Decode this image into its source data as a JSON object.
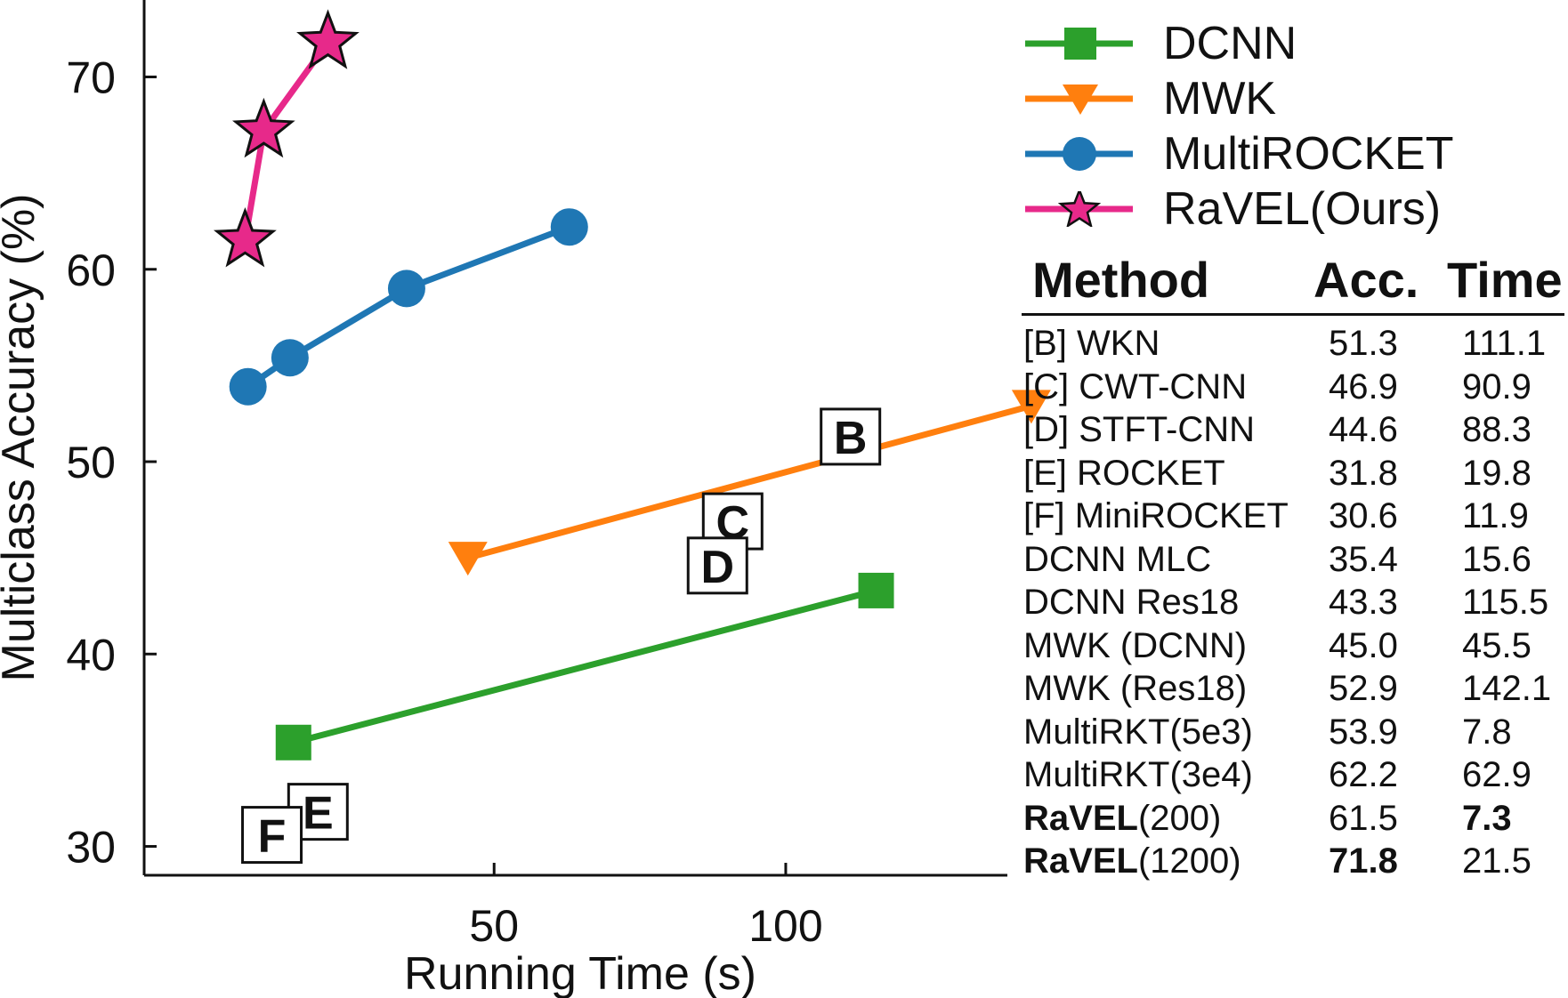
{
  "chart_data": {
    "type": "line",
    "xlabel": "Running Time (s)",
    "ylabel": "Multiclass Accuracy (%)",
    "xlim": [
      -10,
      138
    ],
    "ylim": [
      28.5,
      74
    ],
    "xticks": [
      50,
      100
    ],
    "yticks": [
      30,
      40,
      50,
      60,
      70
    ],
    "grid": false,
    "legend_position": "top-right",
    "series": [
      {
        "name": "DCNN",
        "color": "#2ca02c",
        "marker": "square",
        "points": [
          [
            15.6,
            35.4
          ],
          [
            115.5,
            43.3
          ]
        ]
      },
      {
        "name": "MWK",
        "color": "#ff7f0e",
        "marker": "triangle-down",
        "points": [
          [
            45.5,
            45.0
          ],
          [
            142.1,
            52.9
          ]
        ]
      },
      {
        "name": "MultiROCKET",
        "color": "#1f77b4",
        "marker": "circle",
        "points": [
          [
            7.8,
            53.9
          ],
          [
            15.0,
            55.4
          ],
          [
            35.0,
            59.0
          ],
          [
            62.9,
            62.2
          ]
        ]
      },
      {
        "name": "RaVEL(Ours)",
        "color": "#e7298a",
        "marker": "star",
        "points": [
          [
            7.3,
            61.5
          ],
          [
            10.5,
            67.2
          ],
          [
            21.5,
            71.8
          ]
        ]
      }
    ],
    "annotations": [
      {
        "label": "B",
        "x": 111.1,
        "y": 51.3
      },
      {
        "label": "C",
        "x": 90.9,
        "y": 46.9
      },
      {
        "label": "D",
        "x": 88.3,
        "y": 44.6
      },
      {
        "label": "E",
        "x": 19.8,
        "y": 31.8
      },
      {
        "label": "F",
        "x": 11.9,
        "y": 30.6
      }
    ]
  },
  "table": {
    "headers": [
      "Method",
      "Acc.",
      "Time"
    ],
    "rows": [
      {
        "method_bold": "",
        "method": "[B] WKN",
        "acc": "51.3",
        "time": "111.1",
        "acc_bold": false,
        "time_bold": false
      },
      {
        "method_bold": "",
        "method": "[C] CWT-CNN",
        "acc": "46.9",
        "time": "90.9",
        "acc_bold": false,
        "time_bold": false
      },
      {
        "method_bold": "",
        "method": "[D] STFT-CNN",
        "acc": "44.6",
        "time": "88.3",
        "acc_bold": false,
        "time_bold": false
      },
      {
        "method_bold": "",
        "method": "[E] ROCKET",
        "acc": "31.8",
        "time": "19.8",
        "acc_bold": false,
        "time_bold": false
      },
      {
        "method_bold": "",
        "method": "[F] MiniROCKET",
        "acc": "30.6",
        "time": "11.9",
        "acc_bold": false,
        "time_bold": false
      },
      {
        "method_bold": "",
        "method": "DCNN MLC",
        "acc": "35.4",
        "time": "15.6",
        "acc_bold": false,
        "time_bold": false
      },
      {
        "method_bold": "",
        "method": "DCNN Res18",
        "acc": "43.3",
        "time": "115.5",
        "acc_bold": false,
        "time_bold": false
      },
      {
        "method_bold": "",
        "method": "MWK (DCNN)",
        "acc": "45.0",
        "time": "45.5",
        "acc_bold": false,
        "time_bold": false
      },
      {
        "method_bold": "",
        "method": "MWK (Res18)",
        "acc": "52.9",
        "time": "142.1",
        "acc_bold": false,
        "time_bold": false
      },
      {
        "method_bold": "",
        "method": "MultiRKT(5e3)",
        "acc": "53.9",
        "time": "7.8",
        "acc_bold": false,
        "time_bold": false
      },
      {
        "method_bold": "",
        "method": "MultiRKT(3e4)",
        "acc": "62.2",
        "time": "62.9",
        "acc_bold": false,
        "time_bold": false
      },
      {
        "method_bold": "RaVEL",
        "method": "(200)",
        "acc": "61.5",
        "time": "7.3",
        "acc_bold": false,
        "time_bold": true
      },
      {
        "method_bold": "RaVEL",
        "method": "(1200)",
        "acc": "71.8",
        "time": "21.5",
        "acc_bold": true,
        "time_bold": false
      }
    ]
  }
}
